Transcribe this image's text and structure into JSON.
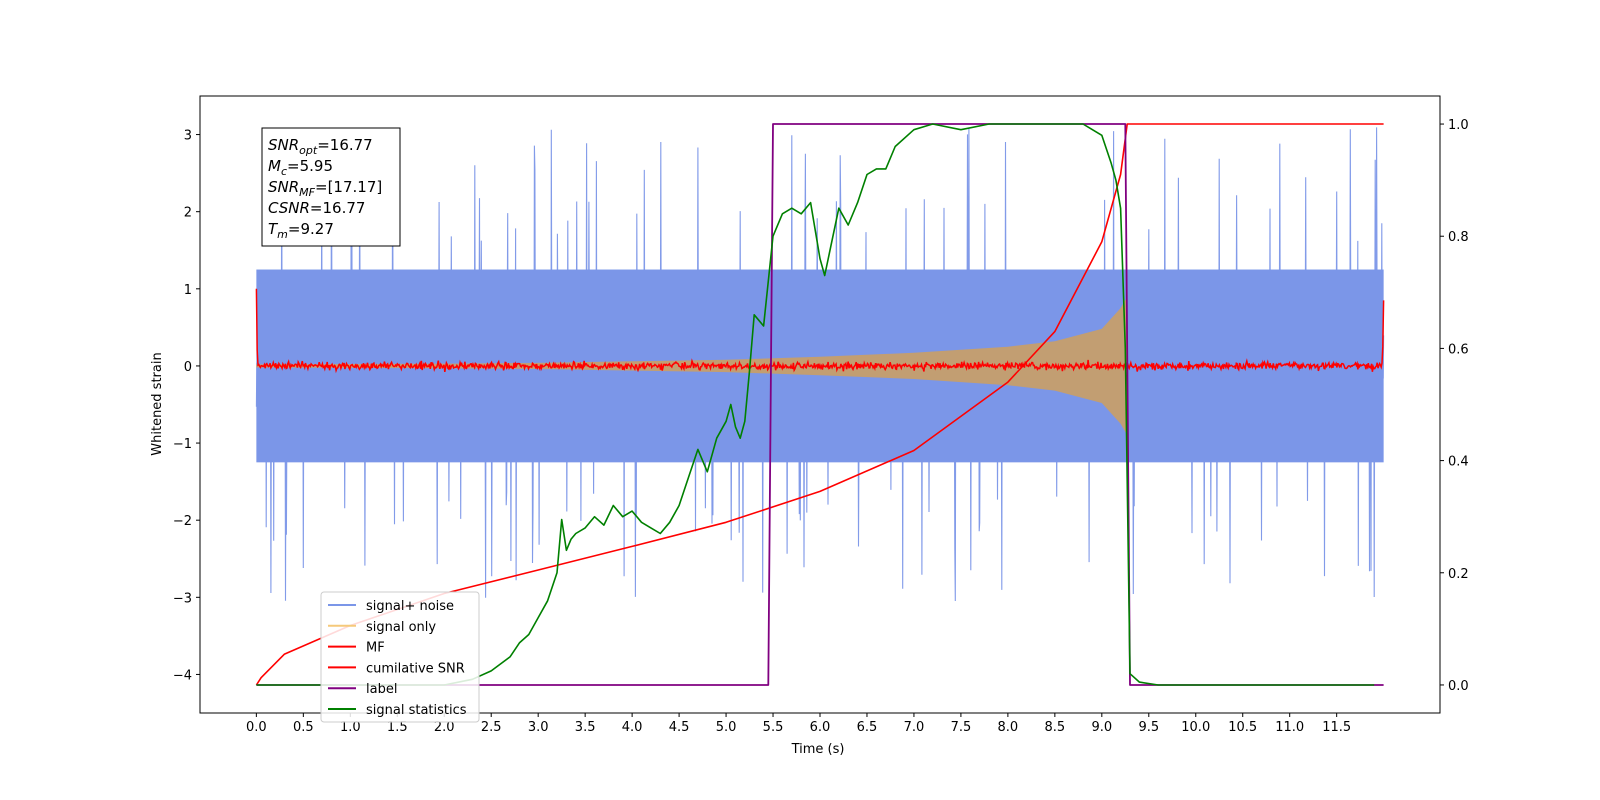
{
  "chart_data": {
    "type": "line",
    "xlabel": "Time (s)",
    "ylabel_left": "Whitened strain",
    "ylabel_right": "",
    "xlim": [
      -0.6,
      12.6
    ],
    "ylim_left": [
      -4.5,
      3.5
    ],
    "ylim_right": [
      -0.05,
      1.05
    ],
    "x_ticks": [
      "0.0",
      "0.5",
      "1.0",
      "1.5",
      "2.0",
      "2.5",
      "3.0",
      "3.5",
      "4.0",
      "4.5",
      "5.0",
      "5.5",
      "6.0",
      "6.5",
      "7.0",
      "7.5",
      "8.0",
      "8.5",
      "9.0",
      "9.5",
      "10.0",
      "10.5",
      "11.0",
      "11.5"
    ],
    "y_ticks_left": [
      "3",
      "2",
      "1",
      "0",
      "−1",
      "−2",
      "−3",
      "−4"
    ],
    "y_ticks_right": [
      "1.0",
      "0.8",
      "0.6",
      "0.4",
      "0.2",
      "0.0"
    ],
    "grid": false,
    "legend_position": "lower-left",
    "legend": [
      {
        "label": "signal+ noise",
        "color": "#7b96e8"
      },
      {
        "label": "signal only",
        "color": "#f5c97a"
      },
      {
        "label": "MF",
        "color": "#ff0000"
      },
      {
        "label": "cumilative SNR",
        "color": "#ff0000"
      },
      {
        "label": "label",
        "color": "#800080"
      },
      {
        "label": "signal statistics",
        "color": "#008000"
      }
    ],
    "annotation": [
      {
        "base": "SNR",
        "sub": "opt",
        "value": "=16.77"
      },
      {
        "base": "M",
        "sub": "c",
        "value": "=5.95"
      },
      {
        "base": "SNR",
        "sub": "MF",
        "value": "=[17.17]"
      },
      {
        "base": "CSNR",
        "sub": "",
        "value": "=16.77"
      },
      {
        "base": "T",
        "sub": "m",
        "value": "=9.27"
      }
    ],
    "series": [
      {
        "name": "signal+ noise",
        "axis": "left",
        "x_range": [
          0.0,
          12.0
        ],
        "band_core": [
          -1.25,
          1.25
        ],
        "spike_extent": [
          -3.1,
          3.2
        ],
        "color": "#7b96e8"
      },
      {
        "name": "signal only",
        "axis": "left",
        "envelope_x": [
          0.0,
          1.0,
          2.0,
          3.0,
          4.0,
          5.0,
          6.0,
          7.0,
          8.0,
          8.5,
          9.0,
          9.2,
          9.27
        ],
        "envelope_amp": [
          0.02,
          0.025,
          0.03,
          0.04,
          0.06,
          0.08,
          0.12,
          0.17,
          0.25,
          0.32,
          0.48,
          0.75,
          0.9
        ],
        "color": "#c29e72"
      },
      {
        "name": "MF",
        "axis": "left",
        "x_range": [
          0.0,
          12.0
        ],
        "level": 0.0,
        "noise_amp": 0.1,
        "color": "#ff0000"
      },
      {
        "name": "cumilative SNR",
        "axis": "right",
        "x": [
          0.0,
          0.05,
          0.3,
          1.0,
          2.0,
          3.0,
          4.0,
          5.0,
          6.0,
          7.0,
          8.0,
          8.5,
          9.0,
          9.2,
          9.27,
          12.0
        ],
        "y": [
          0.0,
          0.013,
          0.055,
          0.106,
          0.163,
          0.205,
          0.247,
          0.29,
          0.345,
          0.418,
          0.54,
          0.63,
          0.79,
          0.91,
          1.0,
          1.0
        ],
        "color": "#ff0000"
      },
      {
        "name": "label",
        "axis": "right",
        "x": [
          0.0,
          5.45,
          5.5,
          9.25,
          9.3,
          12.0
        ],
        "y": [
          0.0,
          0.0,
          1.0,
          1.0,
          0.0,
          0.0
        ],
        "color": "#800080"
      },
      {
        "name": "signal statistics",
        "axis": "right",
        "x": [
          0.0,
          0.5,
          1.0,
          1.5,
          2.0,
          2.3,
          2.5,
          2.7,
          2.8,
          2.9,
          3.0,
          3.1,
          3.2,
          3.25,
          3.3,
          3.35,
          3.4,
          3.5,
          3.6,
          3.7,
          3.8,
          3.9,
          4.0,
          4.1,
          4.2,
          4.3,
          4.4,
          4.5,
          4.6,
          4.7,
          4.8,
          4.9,
          5.0,
          5.05,
          5.1,
          5.15,
          5.2,
          5.25,
          5.3,
          5.4,
          5.5,
          5.6,
          5.7,
          5.8,
          5.9,
          6.0,
          6.05,
          6.1,
          6.2,
          6.3,
          6.4,
          6.5,
          6.6,
          6.7,
          6.8,
          7.0,
          7.2,
          7.5,
          7.8,
          8.0,
          8.5,
          8.8,
          9.0,
          9.1,
          9.15,
          9.2,
          9.25,
          9.3,
          9.4,
          9.6,
          10.0,
          11.0,
          11.9
        ],
        "y": [
          0.0,
          0.0,
          0.0,
          0.0,
          0.0,
          0.01,
          0.025,
          0.05,
          0.075,
          0.09,
          0.12,
          0.15,
          0.2,
          0.295,
          0.24,
          0.26,
          0.27,
          0.28,
          0.3,
          0.285,
          0.32,
          0.3,
          0.31,
          0.29,
          0.28,
          0.27,
          0.29,
          0.32,
          0.37,
          0.42,
          0.38,
          0.44,
          0.47,
          0.5,
          0.46,
          0.44,
          0.47,
          0.56,
          0.66,
          0.64,
          0.8,
          0.84,
          0.85,
          0.84,
          0.86,
          0.76,
          0.73,
          0.77,
          0.85,
          0.82,
          0.86,
          0.91,
          0.92,
          0.92,
          0.96,
          0.99,
          1.0,
          0.99,
          1.0,
          1.0,
          1.0,
          1.0,
          0.98,
          0.93,
          0.9,
          0.85,
          0.6,
          0.02,
          0.005,
          0.0,
          0.0,
          0.0,
          0.0
        ],
        "color": "#008000"
      }
    ]
  }
}
